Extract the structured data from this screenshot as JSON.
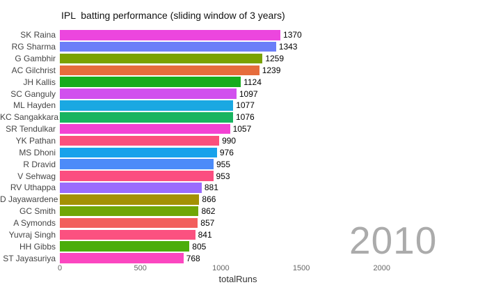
{
  "title": "IPL  batting performance (sliding window of 3 years)",
  "chart_data": {
    "type": "bar",
    "orientation": "horizontal",
    "title": "IPL  batting performance (sliding window of 3 years)",
    "xlabel": "totalRuns",
    "ylabel": "",
    "xlim": [
      0,
      2200
    ],
    "xticks": [
      0,
      500,
      1000,
      1500,
      2000
    ],
    "grid": false,
    "legend": false,
    "annotation": "2010",
    "annotation_color": "#ababab",
    "categories": [
      "SK Raina",
      "RG Sharma",
      "G Gambhir",
      "AC Gilchrist",
      "JH Kallis",
      "SC Ganguly",
      "ML Hayden",
      "KC Sangakkara",
      "SR Tendulkar",
      "YK Pathan",
      "MS Dhoni",
      "R Dravid",
      "V Sehwag",
      "RV Uthappa",
      "D Jayawardene",
      "GC Smith",
      "A Symonds",
      "Yuvraj Singh",
      "HH Gibbs",
      "ST Jayasuriya"
    ],
    "values": [
      1370,
      1343,
      1259,
      1239,
      1124,
      1097,
      1077,
      1076,
      1057,
      990,
      976,
      955,
      953,
      881,
      866,
      862,
      857,
      841,
      805,
      768
    ],
    "bar_colors": [
      "#ec46de",
      "#6c7ef8",
      "#7aa203",
      "#e66c3c",
      "#16ac1d",
      "#d150ee",
      "#1aa8e2",
      "#19b460",
      "#f343d3",
      "#fb507c",
      "#18a2eb",
      "#4c8bf9",
      "#fb4e80",
      "#9a6cfc",
      "#a39104",
      "#70a606",
      "#f25e5c",
      "#fb5180",
      "#4bad0b",
      "#fb47c0"
    ]
  }
}
